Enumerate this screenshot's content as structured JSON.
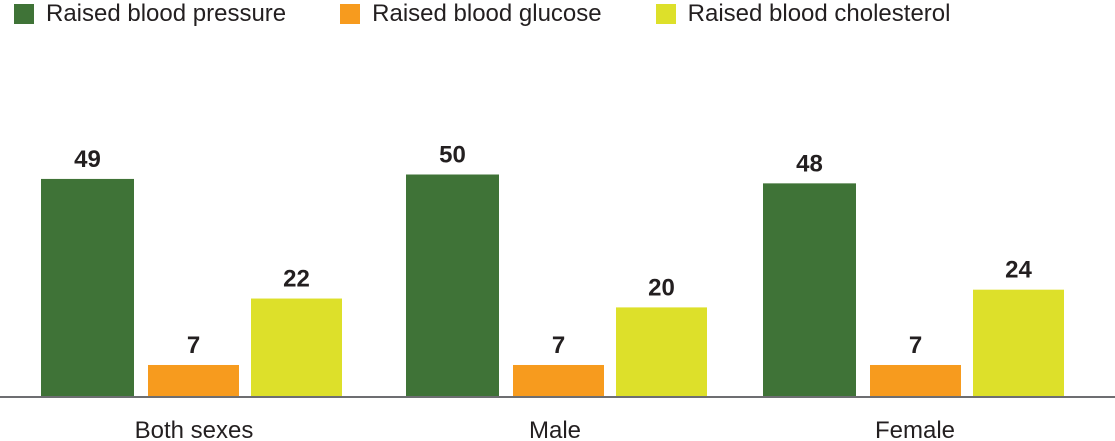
{
  "chart_data": {
    "type": "bar",
    "categories": [
      "Both sexes",
      "Male",
      "Female"
    ],
    "series": [
      {
        "name": "Raised blood pressure",
        "color": "#3f7337",
        "values": [
          49,
          50,
          48
        ]
      },
      {
        "name": "Raised blood glucose",
        "color": "#f79b1e",
        "values": [
          7,
          7,
          7
        ]
      },
      {
        "name": "Raised blood cholesterol",
        "color": "#dde02a",
        "values": [
          22,
          20,
          24
        ]
      }
    ],
    "title": "",
    "xlabel": "",
    "ylabel": "",
    "ylim": [
      0,
      50
    ],
    "grid": false,
    "legend_position": "top-left"
  }
}
